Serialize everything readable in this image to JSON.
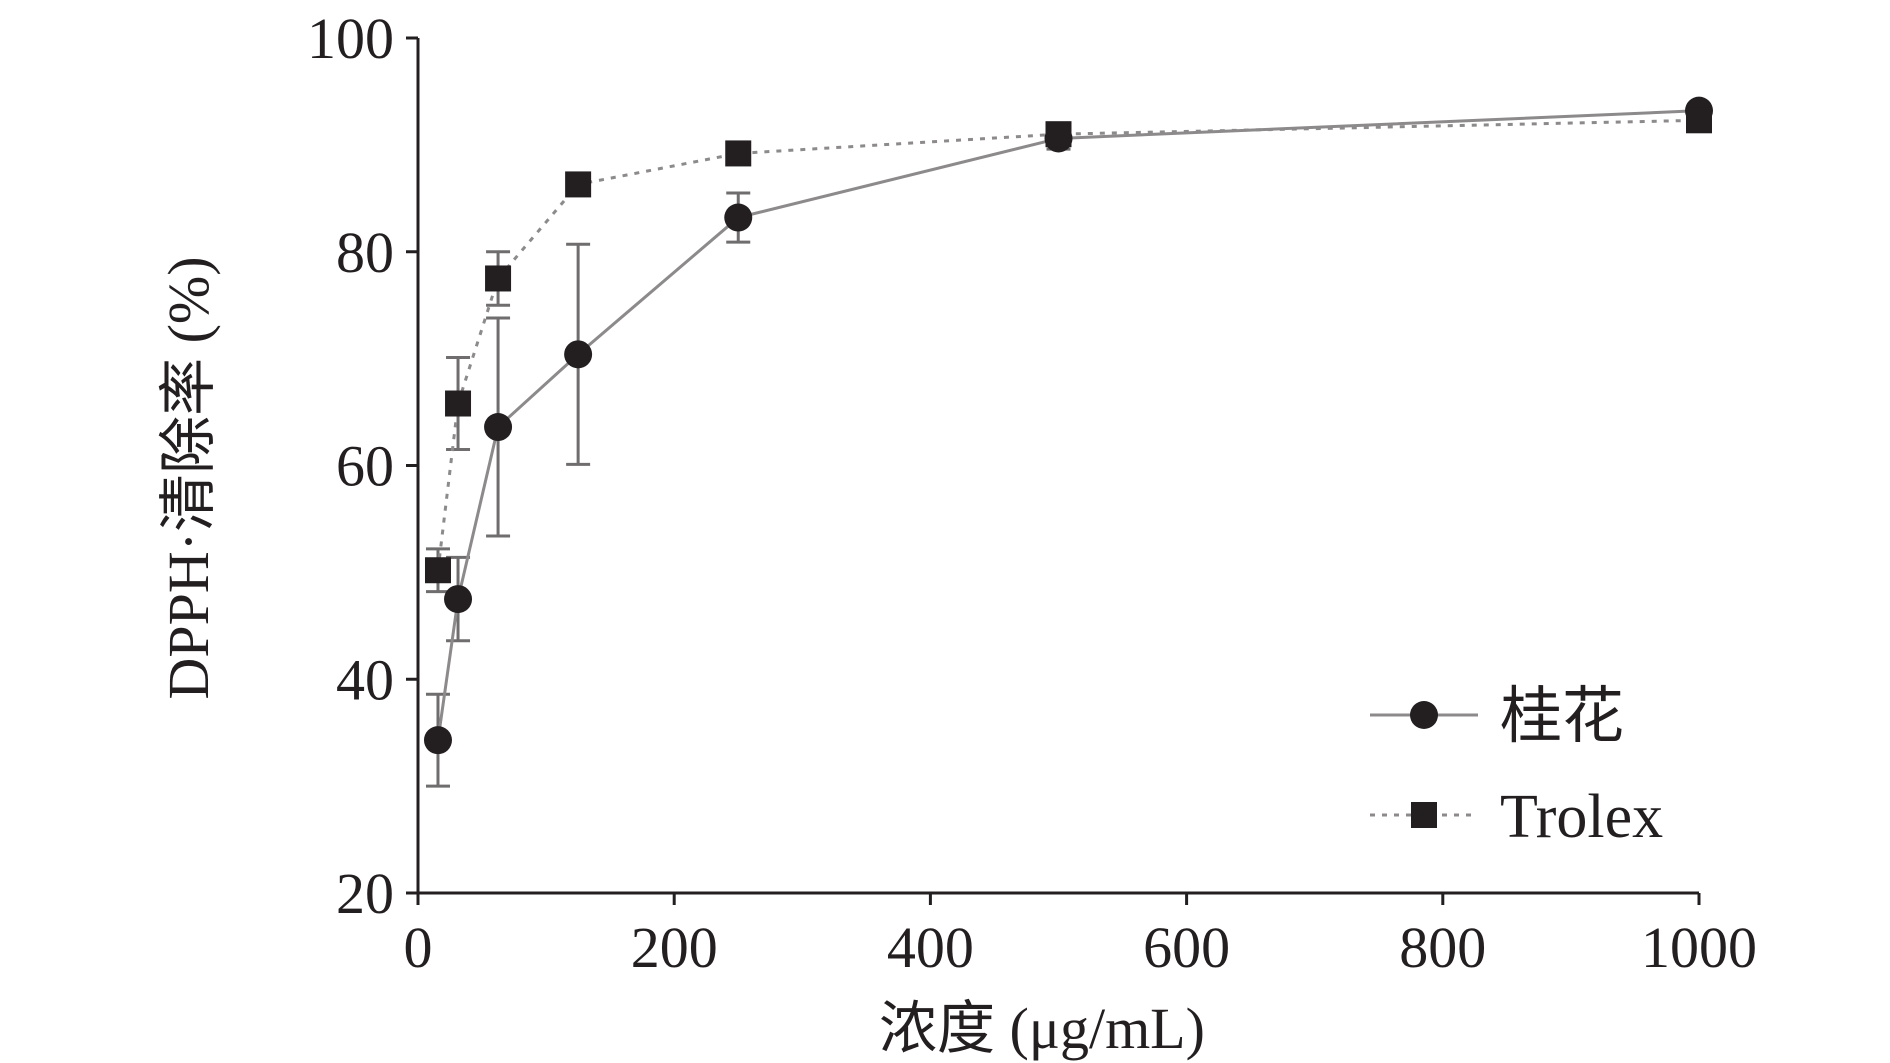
{
  "colors": {
    "axis": "#231f20",
    "series_line": "#8c8a8a",
    "marker": "#231f20",
    "error_bar": "#6f6d6d"
  },
  "chart_data": {
    "type": "line",
    "title": "",
    "xlabel": "浓度 (μg/mL)",
    "ylabel": "DPPH·清除率 (%)",
    "xlim": [
      0,
      1000
    ],
    "ylim": [
      20,
      100
    ],
    "xticks": [
      0,
      200,
      400,
      600,
      800,
      1000
    ],
    "xtick_labels": [
      "0",
      "200",
      "400",
      "600",
      "800",
      "1000"
    ],
    "yticks": [
      20,
      40,
      60,
      80,
      100
    ],
    "ytick_labels": [
      "20",
      "40",
      "60",
      "80",
      "100"
    ],
    "grid": false,
    "legend_position": "bottom-right",
    "series": [
      {
        "name": "桂花",
        "marker": "circle",
        "line_style": "solid",
        "x": [
          15.6,
          31.25,
          62.5,
          125,
          250,
          500,
          1000
        ],
        "y": [
          34.3,
          47.5,
          63.6,
          70.4,
          83.2,
          90.6,
          93.2
        ],
        "error": [
          4.3,
          3.9,
          10.2,
          10.3,
          2.3,
          1.0,
          0.5
        ]
      },
      {
        "name": "Trolex",
        "marker": "square",
        "line_style": "dotted",
        "x": [
          15.6,
          31.25,
          62.5,
          125,
          250,
          500,
          1000
        ],
        "y": [
          50.2,
          65.8,
          77.5,
          86.3,
          89.2,
          91.0,
          92.3
        ],
        "error": [
          2.0,
          4.3,
          2.5,
          0.6,
          0.5,
          0.6,
          0.5
        ]
      }
    ]
  }
}
